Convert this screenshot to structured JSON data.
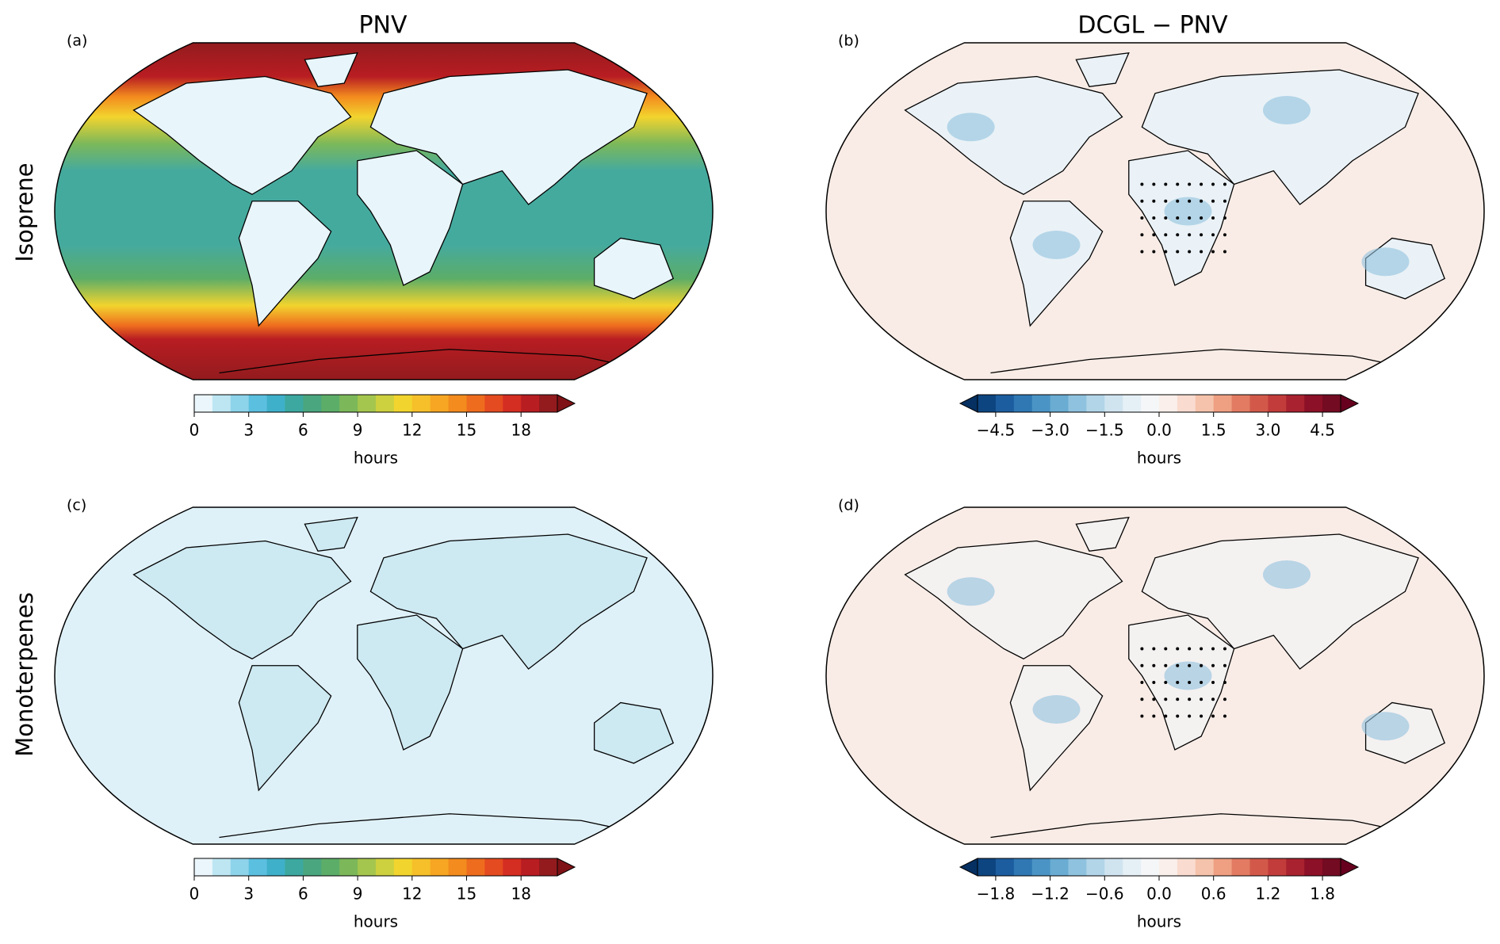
{
  "row_labels": [
    "Isoprene",
    "Monoterpenes"
  ],
  "column_titles": [
    "PNV",
    "DCGL − PNV"
  ],
  "panels": [
    {
      "label": "(a)",
      "colorbar": {
        "label": "hours",
        "range": [
          0,
          20
        ],
        "extend": "max",
        "ticks": [
          0,
          3,
          6,
          9,
          12,
          15,
          18
        ],
        "colors": [
          "#eaf6fb",
          "#bde6f2",
          "#8dd3ea",
          "#5bbfe0",
          "#3fb0c9",
          "#3ca89f",
          "#4aa67e",
          "#5cad68",
          "#7cb85a",
          "#a5c64e",
          "#cdd03f",
          "#f2d42e",
          "#f6c02a",
          "#f6a623",
          "#f38b1e",
          "#ee6c1e",
          "#e44b20",
          "#d42d22",
          "#b81d22",
          "#931b1e"
        ],
        "over_color": "#7f1216"
      }
    },
    {
      "label": "(b)",
      "colorbar": {
        "label": "hours",
        "range": [
          -5,
          5
        ],
        "extend": "both",
        "ticks": [
          {
            "value": -4.5,
            "label": "−4.5"
          },
          {
            "value": -3,
            "label": "−3.0"
          },
          {
            "value": -1.5,
            "label": "−1.5"
          },
          {
            "value": 0,
            "label": "0.0"
          },
          1.5,
          {
            "value": 3,
            "label": "3.0"
          },
          4.5
        ],
        "colors": [
          "#0d4580",
          "#1c5d9f",
          "#2f78b4",
          "#4a94c5",
          "#6aacd2",
          "#8fc2de",
          "#b2d5e8",
          "#d0e4f0",
          "#e5eff6",
          "#f4f6f8",
          "#faefea",
          "#f9dccf",
          "#f5c3ab",
          "#ef9f82",
          "#e27b62",
          "#d2594a",
          "#c13c3a",
          "#a92230",
          "#8c1027",
          "#730b22"
        ],
        "under_color": "#053061",
        "over_color": "#67001f"
      }
    },
    {
      "label": "(c)",
      "colorbar": {
        "label": "hours",
        "range": [
          0,
          20
        ],
        "extend": "max",
        "ticks": [
          0,
          3,
          6,
          9,
          12,
          15,
          18
        ],
        "colors": [
          "#eaf6fb",
          "#bde6f2",
          "#8dd3ea",
          "#5bbfe0",
          "#3fb0c9",
          "#3ca89f",
          "#4aa67e",
          "#5cad68",
          "#7cb85a",
          "#a5c64e",
          "#cdd03f",
          "#f2d42e",
          "#f6c02a",
          "#f6a623",
          "#f38b1e",
          "#ee6c1e",
          "#e44b20",
          "#d42d22",
          "#b81d22",
          "#931b1e"
        ],
        "over_color": "#7f1216"
      }
    },
    {
      "label": "(d)",
      "colorbar": {
        "label": "hours",
        "range": [
          -2,
          2
        ],
        "extend": "both",
        "ticks": [
          {
            "value": -1.8,
            "label": "−1.8"
          },
          {
            "value": -1.2,
            "label": "−1.2"
          },
          {
            "value": -0.6,
            "label": "−0.6"
          },
          {
            "value": 0,
            "label": "0.0"
          },
          0.6,
          1.2,
          1.8
        ],
        "colors": [
          "#0d4580",
          "#1c5d9f",
          "#2f78b4",
          "#4a94c5",
          "#6aacd2",
          "#8fc2de",
          "#b2d5e8",
          "#d0e4f0",
          "#e5eff6",
          "#f4f6f8",
          "#faefea",
          "#f9dccf",
          "#f5c3ab",
          "#ef9f82",
          "#e27b62",
          "#d2594a",
          "#c13c3a",
          "#a92230",
          "#8c1027",
          "#730b22"
        ],
        "under_color": "#053061",
        "over_color": "#67001f"
      }
    }
  ]
}
